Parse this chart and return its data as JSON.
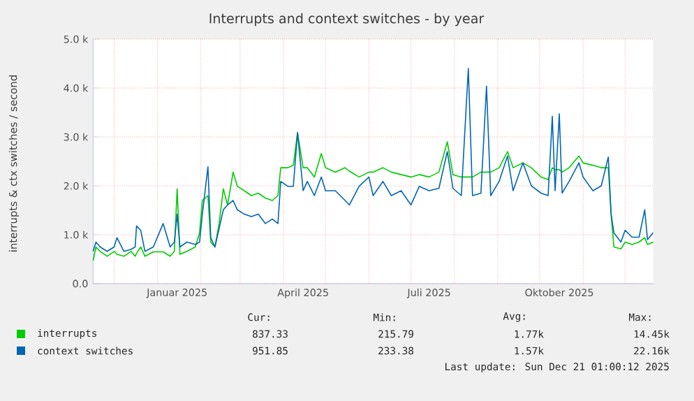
{
  "chart_data": {
    "type": "line",
    "title": "Interrupts and context switches - by year",
    "ylabel": "interrupts & ctx switches / second",
    "x": [
      "2024-11-16",
      "2024-11-18",
      "2024-11-21",
      "2024-11-26",
      "2024-12-01",
      "2024-12-03",
      "2024-12-08",
      "2024-12-13",
      "2024-12-16",
      "2024-12-17",
      "2024-12-20",
      "2024-12-23",
      "2024-12-29",
      "2025-01-05",
      "2025-01-10",
      "2025-01-13",
      "2025-01-15",
      "2025-01-17",
      "2025-01-22",
      "2025-01-28",
      "2025-01-31",
      "2025-02-02",
      "2025-02-06",
      "2025-02-08",
      "2025-02-11",
      "2025-02-14",
      "2025-02-17",
      "2025-02-20",
      "2025-02-24",
      "2025-02-27",
      "2025-03-04",
      "2025-03-09",
      "2025-03-14",
      "2025-03-19",
      "2025-03-24",
      "2025-03-28",
      "2025-03-30",
      "2025-04-04",
      "2025-04-08",
      "2025-04-11",
      "2025-04-15",
      "2025-04-18",
      "2025-04-23",
      "2025-04-28",
      "2025-05-01",
      "2025-05-08",
      "2025-05-15",
      "2025-05-18",
      "2025-05-25",
      "2025-06-01",
      "2025-06-04",
      "2025-06-11",
      "2025-06-17",
      "2025-06-24",
      "2025-07-01",
      "2025-07-07",
      "2025-07-14",
      "2025-07-21",
      "2025-07-27",
      "2025-07-31",
      "2025-08-06",
      "2025-08-11",
      "2025-08-14",
      "2025-08-20",
      "2025-08-24",
      "2025-08-27",
      "2025-09-02",
      "2025-09-08",
      "2025-09-12",
      "2025-09-19",
      "2025-09-25",
      "2025-10-02",
      "2025-10-07",
      "2025-10-10",
      "2025-10-12",
      "2025-10-15",
      "2025-10-17",
      "2025-10-22",
      "2025-10-29",
      "2025-11-01",
      "2025-11-08",
      "2025-11-14",
      "2025-11-19",
      "2025-11-21",
      "2025-11-23",
      "2025-11-28",
      "2025-12-01",
      "2025-12-06",
      "2025-12-11",
      "2025-12-15",
      "2025-12-17",
      "2025-12-21"
    ],
    "series": [
      {
        "name": "interrupts",
        "color": "#00cc00",
        "values": [
          470,
          750,
          660,
          560,
          660,
          600,
          560,
          660,
          560,
          620,
          750,
          560,
          650,
          650,
          560,
          660,
          1940,
          600,
          660,
          750,
          1040,
          1700,
          1800,
          850,
          750,
          1230,
          1940,
          1610,
          2280,
          1990,
          1900,
          1800,
          1850,
          1750,
          1700,
          1800,
          2370,
          2370,
          2420,
          3090,
          2370,
          2370,
          2180,
          2660,
          2370,
          2280,
          2370,
          2300,
          2180,
          2280,
          2280,
          2370,
          2280,
          2230,
          2180,
          2230,
          2180,
          2280,
          2900,
          2230,
          2180,
          null,
          2180,
          2280,
          null,
          2280,
          2370,
          2700,
          2370,
          2470,
          2370,
          2180,
          2130,
          2370,
          2330,
          2330,
          2280,
          2370,
          2610,
          2470,
          2420,
          2370,
          2370,
          1420,
          750,
          710,
          850,
          800,
          850,
          940,
          800,
          850
        ]
      },
      {
        "name": "context switches",
        "color": "#0066b3",
        "values": [
          660,
          850,
          750,
          660,
          750,
          940,
          660,
          700,
          750,
          1180,
          1090,
          660,
          750,
          1230,
          750,
          850,
          1420,
          750,
          850,
          800,
          850,
          1420,
          2390,
          940,
          750,
          1130,
          1510,
          1610,
          1700,
          1510,
          1420,
          1370,
          1420,
          1230,
          1320,
          1230,
          2090,
          1990,
          1990,
          3090,
          1900,
          2090,
          1800,
          2180,
          1900,
          1900,
          1700,
          1610,
          1990,
          2180,
          1800,
          2090,
          1800,
          1900,
          1610,
          1990,
          1900,
          1950,
          2700,
          1950,
          1800,
          4400,
          1800,
          1850,
          4040,
          1800,
          2090,
          2610,
          1900,
          2470,
          2000,
          1850,
          1800,
          3420,
          1900,
          3470,
          1850,
          2090,
          2470,
          2180,
          1900,
          2000,
          2590,
          1420,
          1040,
          850,
          1090,
          950,
          950,
          1510,
          900,
          1040
        ]
      }
    ],
    "xlim": [
      "2024-11-16",
      "2025-12-21"
    ],
    "xticks": [
      {
        "value": "2024-12-01",
        "label": null
      },
      {
        "value": "2025-01-01",
        "label": null
      },
      {
        "value": "2025-01-15",
        "label": "Januar 2025"
      },
      {
        "value": "2025-02-01",
        "label": null
      },
      {
        "value": "2025-03-01",
        "label": null
      },
      {
        "value": "2025-04-01",
        "label": null
      },
      {
        "value": "2025-04-15",
        "label": "April 2025"
      },
      {
        "value": "2025-05-01",
        "label": null
      },
      {
        "value": "2025-06-01",
        "label": null
      },
      {
        "value": "2025-07-01",
        "label": null
      },
      {
        "value": "2025-07-14",
        "label": "Juli 2025"
      },
      {
        "value": "2025-08-01",
        "label": null
      },
      {
        "value": "2025-09-01",
        "label": null
      },
      {
        "value": "2025-10-01",
        "label": null
      },
      {
        "value": "2025-10-15",
        "label": "Oktober 2025"
      },
      {
        "value": "2025-11-01",
        "label": null
      },
      {
        "value": "2025-12-01",
        "label": null
      }
    ],
    "ylim": [
      0,
      5000
    ],
    "yticks": [
      {
        "value": 0,
        "label": "0.0"
      },
      {
        "value": 1000,
        "label": "1.0 k"
      },
      {
        "value": 2000,
        "label": "2.0 k"
      },
      {
        "value": 3000,
        "label": "3.0 k"
      },
      {
        "value": 4000,
        "label": "4.0 k"
      },
      {
        "value": 5000,
        "label": "5.0 k"
      }
    ],
    "grid": true,
    "legend": "bottom",
    "annotations": [
      "Cur:",
      "Min:",
      "Avg:",
      "Max:",
      "837.33",
      "215.79",
      "1.77k",
      "14.45k",
      "951.85",
      "233.38",
      "1.57k",
      "22.16k",
      "Last update: Sun Dec 21 01:00:12 2025"
    ]
  }
}
